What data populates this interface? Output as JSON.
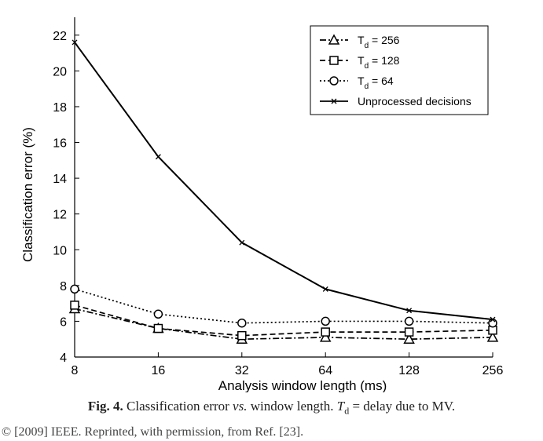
{
  "chart_data": {
    "type": "line",
    "xlabel": "Analysis window length (ms)",
    "ylabel": "Classification error (%)",
    "x_scale": "log2",
    "x": [
      8,
      16,
      32,
      64,
      128,
      256
    ],
    "x_tick_labels": [
      "8",
      "16",
      "32",
      "64",
      "128",
      "256"
    ],
    "ylim": [
      4,
      23
    ],
    "y_ticks": [
      4,
      6,
      8,
      10,
      12,
      14,
      16,
      18,
      20,
      22
    ],
    "y_tick_labels": [
      "4",
      "6",
      "8",
      "10",
      "12",
      "14",
      "16",
      "18",
      "20",
      "22"
    ],
    "grid": false,
    "legend_position": "top-right",
    "series": [
      {
        "name": "T_d = 256",
        "legend_main": "T",
        "legend_sub": "d",
        "legend_rest": " = 256",
        "marker": "triangle",
        "dash": "dashdot",
        "values": [
          6.7,
          5.6,
          5.0,
          5.1,
          5.0,
          5.1
        ]
      },
      {
        "name": "T_d = 128",
        "legend_main": "T",
        "legend_sub": "d",
        "legend_rest": " = 128",
        "marker": "square",
        "dash": "dashed",
        "values": [
          6.9,
          5.6,
          5.2,
          5.4,
          5.4,
          5.5
        ]
      },
      {
        "name": "T_d = 64",
        "legend_main": "T",
        "legend_sub": "d",
        "legend_rest": " = 64",
        "marker": "circle",
        "dash": "dotted",
        "values": [
          7.8,
          6.4,
          5.9,
          6.0,
          6.0,
          5.9
        ]
      },
      {
        "name": "Unprocessed decisions",
        "legend_main": "Unprocessed decisions",
        "legend_sub": "",
        "legend_rest": "",
        "marker": "x",
        "dash": "solid",
        "values": [
          21.6,
          15.2,
          10.4,
          7.8,
          6.6,
          6.1
        ]
      }
    ]
  },
  "caption": {
    "fig_label": "Fig. 4.",
    "part1": "Classification error ",
    "vs": "vs.",
    "part2": " window length. ",
    "t_main": "T",
    "t_sub": "d",
    "part3": " = delay due to MV."
  },
  "credit": "© [2009] IEEE. Reprinted, with permission, from Ref. [23]."
}
